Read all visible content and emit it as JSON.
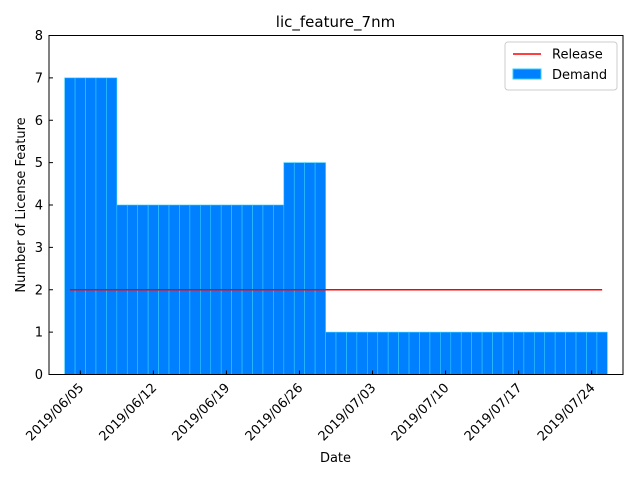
{
  "chart_data": {
    "type": "bar",
    "title": "lic_feature_7nm",
    "xlabel": "Date",
    "ylabel": "Number of License Feature",
    "ylim": [
      0,
      8
    ],
    "yticks": [
      "0",
      "1",
      "2",
      "3",
      "4",
      "5",
      "6",
      "7",
      "8"
    ],
    "xlim": [
      "2019-06-02",
      "2019-07-27"
    ],
    "xticks": [
      "2019/06/05",
      "2019/06/12",
      "2019/06/19",
      "2019/06/26",
      "2019/07/03",
      "2019/07/10",
      "2019/07/17",
      "2019/07/24"
    ],
    "legend_position": "top-right",
    "grid": false,
    "series": [
      {
        "name": "Release",
        "kind": "line",
        "color": "#ff0000",
        "x": [
          "2019-06-04",
          "2019-07-25"
        ],
        "values": [
          2,
          2
        ]
      },
      {
        "name": "Demand",
        "kind": "bar",
        "color": "#0080ff",
        "edge_color": "#33ccff",
        "x": [
          "2019-06-04",
          "2019-06-05",
          "2019-06-06",
          "2019-06-07",
          "2019-06-08",
          "2019-06-09",
          "2019-06-10",
          "2019-06-11",
          "2019-06-12",
          "2019-06-13",
          "2019-06-14",
          "2019-06-15",
          "2019-06-16",
          "2019-06-17",
          "2019-06-18",
          "2019-06-19",
          "2019-06-20",
          "2019-06-21",
          "2019-06-22",
          "2019-06-23",
          "2019-06-24",
          "2019-06-25",
          "2019-06-26",
          "2019-06-27",
          "2019-06-28",
          "2019-06-29",
          "2019-06-30",
          "2019-07-01",
          "2019-07-02",
          "2019-07-03",
          "2019-07-04",
          "2019-07-05",
          "2019-07-06",
          "2019-07-07",
          "2019-07-08",
          "2019-07-09",
          "2019-07-10",
          "2019-07-11",
          "2019-07-12",
          "2019-07-13",
          "2019-07-14",
          "2019-07-15",
          "2019-07-16",
          "2019-07-17",
          "2019-07-18",
          "2019-07-19",
          "2019-07-20",
          "2019-07-21",
          "2019-07-22",
          "2019-07-23",
          "2019-07-24",
          "2019-07-25"
        ],
        "values": [
          7,
          7,
          7,
          7,
          7,
          4,
          4,
          4,
          4,
          4,
          4,
          4,
          4,
          4,
          4,
          4,
          4,
          4,
          4,
          4,
          4,
          5,
          5,
          5,
          5,
          1,
          1,
          1,
          1,
          1,
          1,
          1,
          1,
          1,
          1,
          1,
          1,
          1,
          1,
          1,
          1,
          1,
          1,
          1,
          1,
          1,
          1,
          1,
          1,
          1,
          1,
          1
        ]
      }
    ]
  }
}
